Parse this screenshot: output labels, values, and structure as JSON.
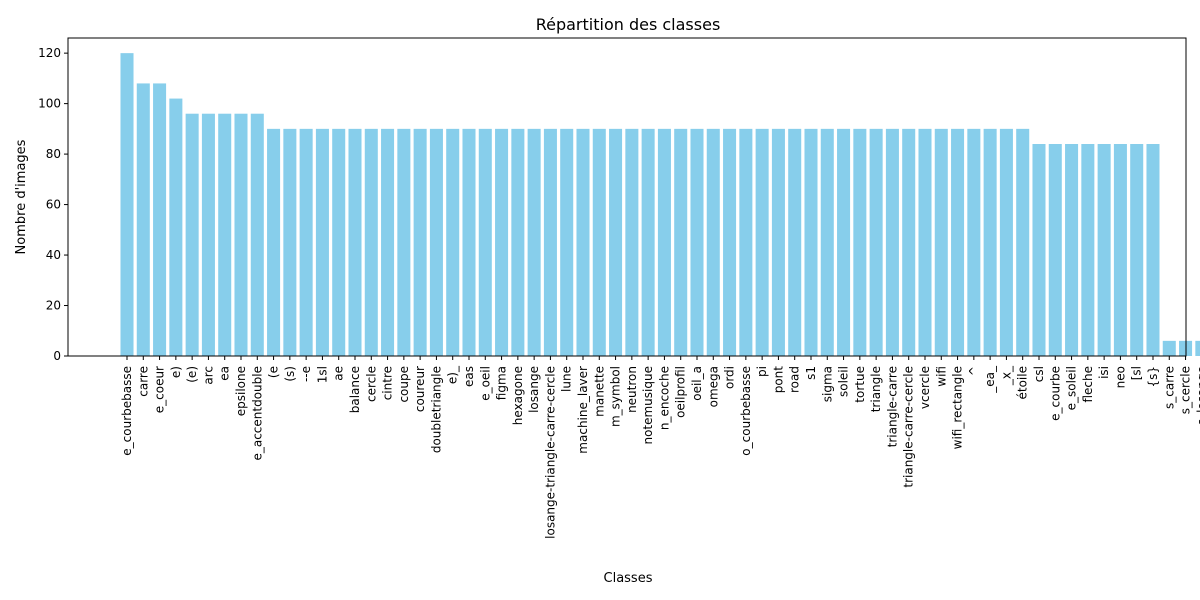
{
  "chart_data": {
    "type": "bar",
    "title": "Répartition des classes",
    "xlabel": "Classes",
    "ylabel": "Nombre d'images",
    "ylim": [
      0,
      126
    ],
    "yticks": [
      0,
      20,
      40,
      60,
      80,
      100,
      120
    ],
    "bar_color": "#87ceeb",
    "grid": false,
    "categories": [
      "e_courbebasse",
      "carre",
      "e_coeur",
      "e)",
      "(e)",
      "arc",
      "ea",
      "epsilone",
      "e_accentdouble",
      "(e",
      "(s)",
      "--e",
      "1sl",
      "ae",
      "balance",
      "cercle",
      "cintre",
      "coupe",
      "coureur",
      "doubletriangle",
      "e)_",
      "eas",
      "e_oeil",
      "figma",
      "hexagone",
      "losange",
      "losange-triangle-carre-cercle",
      "lune",
      "machine_laver",
      "manette",
      "m_symbol",
      "neutron",
      "notemusique",
      "n_encoche",
      "oeilprofil",
      "oeil_a",
      "omega",
      "ordi",
      "o_courbebasse",
      "pi",
      "pont",
      "road",
      "s1",
      "sigma",
      "soleil",
      "tortue",
      "triangle",
      "triangle-carre",
      "triangle-carre-cercle",
      "vcercle",
      "wifi",
      "wifi_rectangle",
      "^",
      "_ea_",
      "_x_",
      "étoile",
      "csl",
      "e_courbe",
      "e_soleil",
      "fleche",
      "isi",
      "neo",
      "[sl",
      "{s}",
      "s_carre",
      "s_cercle",
      "s_losange"
    ],
    "values": [
      120,
      108,
      108,
      102,
      96,
      96,
      96,
      96,
      96,
      90,
      90,
      90,
      90,
      90,
      90,
      90,
      90,
      90,
      90,
      90,
      90,
      90,
      90,
      90,
      90,
      90,
      90,
      90,
      90,
      90,
      90,
      90,
      90,
      90,
      90,
      90,
      90,
      90,
      90,
      90,
      90,
      90,
      90,
      90,
      90,
      90,
      90,
      90,
      90,
      90,
      90,
      90,
      90,
      90,
      90,
      90,
      84,
      84,
      84,
      84,
      84,
      84,
      84,
      84,
      6,
      6,
      6
    ]
  }
}
